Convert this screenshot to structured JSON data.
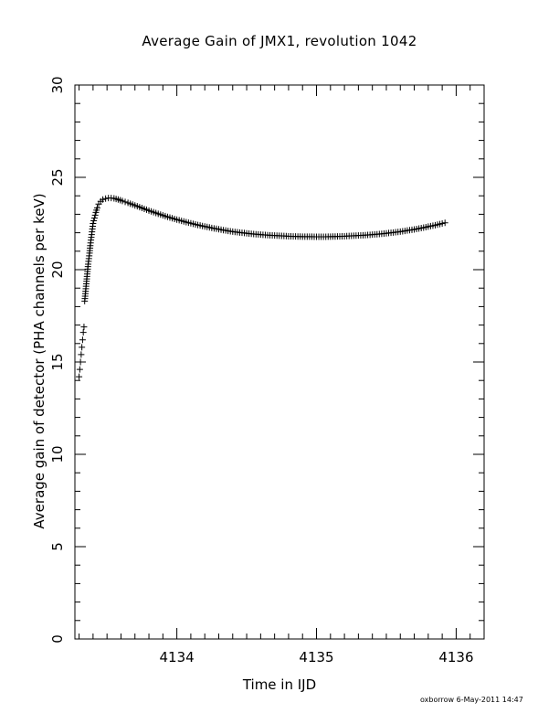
{
  "chart_data": {
    "type": "scatter",
    "title": "Average Gain of JMX1, revolution 1042",
    "xlabel": "Time in IJD",
    "ylabel": "Average gain of detector (PHA channels per keV)",
    "xlim": [
      4133.27,
      4136.2
    ],
    "ylim": [
      0,
      30
    ],
    "x_ticks": [
      4134,
      4135,
      4136
    ],
    "y_ticks": [
      0,
      5,
      10,
      15,
      20,
      25,
      30
    ],
    "x_tick_labels": [
      "4134",
      "4135",
      "4136"
    ],
    "y_tick_labels": [
      "0",
      "5",
      "10",
      "15",
      "20",
      "25",
      "30"
    ],
    "grid": false,
    "marker": "+",
    "marker_color": "#000000",
    "series": [
      {
        "points": [
          [
            4133.3,
            14.2
          ],
          [
            4133.305,
            14.6
          ],
          [
            4133.31,
            15.0
          ],
          [
            4133.315,
            15.4
          ],
          [
            4133.32,
            15.8
          ],
          [
            4133.325,
            16.2
          ],
          [
            4133.33,
            16.6
          ],
          [
            4133.335,
            16.9
          ],
          [
            4133.34,
            18.3
          ],
          [
            4133.345,
            18.7
          ],
          [
            4133.35,
            19.1
          ],
          [
            4133.355,
            19.5
          ],
          [
            4133.36,
            19.9
          ],
          [
            4133.365,
            20.3
          ],
          [
            4133.37,
            20.6
          ],
          [
            4133.375,
            20.9
          ],
          [
            4133.38,
            21.3
          ],
          [
            4133.385,
            21.6
          ],
          [
            4133.39,
            21.9
          ],
          [
            4133.395,
            22.2
          ],
          [
            4133.4,
            22.5
          ],
          [
            4133.41,
            22.8
          ],
          [
            4133.42,
            23.1
          ],
          [
            4133.43,
            23.35
          ],
          [
            4133.44,
            23.55
          ],
          [
            4133.455,
            23.7
          ],
          [
            4133.47,
            23.8
          ],
          [
            4133.49,
            23.85
          ],
          [
            4133.51,
            23.88
          ],
          [
            4133.53,
            23.88
          ],
          [
            4133.55,
            23.86
          ],
          [
            4133.58,
            23.8
          ],
          [
            4133.61,
            23.72
          ],
          [
            4133.65,
            23.62
          ],
          [
            4133.7,
            23.48
          ],
          [
            4133.75,
            23.34
          ],
          [
            4133.8,
            23.2
          ],
          [
            4133.85,
            23.07
          ],
          [
            4133.9,
            22.94
          ],
          [
            4133.95,
            22.82
          ],
          [
            4134.0,
            22.71
          ],
          [
            4134.05,
            22.61
          ],
          [
            4134.1,
            22.51
          ],
          [
            4134.15,
            22.42
          ],
          [
            4134.2,
            22.34
          ],
          [
            4134.25,
            22.26
          ],
          [
            4134.3,
            22.19
          ],
          [
            4134.35,
            22.12
          ],
          [
            4134.4,
            22.06
          ],
          [
            4134.45,
            22.01
          ],
          [
            4134.5,
            21.97
          ],
          [
            4134.55,
            21.93
          ],
          [
            4134.6,
            21.9
          ],
          [
            4134.65,
            21.87
          ],
          [
            4134.7,
            21.85
          ],
          [
            4134.75,
            21.83
          ],
          [
            4134.8,
            21.81
          ],
          [
            4134.85,
            21.8
          ],
          [
            4134.9,
            21.79
          ],
          [
            4134.95,
            21.79
          ],
          [
            4135.0,
            21.78
          ],
          [
            4135.05,
            21.78
          ],
          [
            4135.1,
            21.79
          ],
          [
            4135.15,
            21.8
          ],
          [
            4135.2,
            21.81
          ],
          [
            4135.25,
            21.83
          ],
          [
            4135.3,
            21.85
          ],
          [
            4135.35,
            21.87
          ],
          [
            4135.4,
            21.9
          ],
          [
            4135.45,
            21.93
          ],
          [
            4135.5,
            21.97
          ],
          [
            4135.55,
            22.01
          ],
          [
            4135.6,
            22.06
          ],
          [
            4135.65,
            22.12
          ],
          [
            4135.7,
            22.18
          ],
          [
            4135.75,
            22.25
          ],
          [
            4135.8,
            22.33
          ],
          [
            4135.85,
            22.41
          ],
          [
            4135.9,
            22.5
          ],
          [
            4135.92,
            22.54
          ]
        ]
      }
    ]
  },
  "footer": {
    "credit": "oxborrow  6-May-2011 14:47"
  }
}
